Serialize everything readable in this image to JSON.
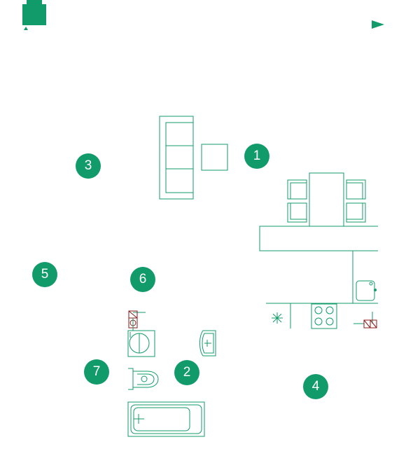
{
  "colors": {
    "accent": "#129b6a",
    "marker_text": "#ffffff",
    "line": "#129b6a",
    "detail": "#8b1a1a"
  },
  "icons": {
    "logo": "building-logo-icon",
    "navigation": "play-arrow-icon"
  },
  "markers": [
    {
      "id": "1",
      "label": "1"
    },
    {
      "id": "2",
      "label": "2"
    },
    {
      "id": "3",
      "label": "3"
    },
    {
      "id": "4",
      "label": "4"
    },
    {
      "id": "5",
      "label": "5"
    },
    {
      "id": "6",
      "label": "6"
    },
    {
      "id": "7",
      "label": "7"
    }
  ]
}
